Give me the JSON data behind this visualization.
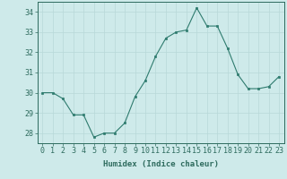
{
  "x": [
    0,
    1,
    2,
    3,
    4,
    5,
    6,
    7,
    8,
    9,
    10,
    11,
    12,
    13,
    14,
    15,
    16,
    17,
    18,
    19,
    20,
    21,
    22,
    23
  ],
  "y": [
    30.0,
    30.0,
    29.7,
    28.9,
    28.9,
    27.8,
    28.0,
    28.0,
    28.5,
    29.8,
    30.6,
    31.8,
    32.7,
    33.0,
    33.1,
    34.2,
    33.3,
    33.3,
    32.2,
    30.9,
    30.2,
    30.2,
    30.3,
    30.8
  ],
  "line_color": "#2e7b6e",
  "marker": "s",
  "marker_size": 2.0,
  "bg_color": "#ceeaea",
  "grid_color": "#b8d8d8",
  "xlabel": "Humidex (Indice chaleur)",
  "xlim": [
    -0.5,
    23.5
  ],
  "ylim": [
    27.5,
    34.5
  ],
  "yticks": [
    28,
    29,
    30,
    31,
    32,
    33,
    34
  ],
  "xtick_labels": [
    "0",
    "1",
    "2",
    "3",
    "4",
    "5",
    "6",
    "7",
    "8",
    "9",
    "10",
    "11",
    "12",
    "13",
    "14",
    "15",
    "16",
    "17",
    "18",
    "19",
    "20",
    "21",
    "22",
    "23"
  ],
  "xlabel_fontsize": 6.5,
  "tick_fontsize": 6.0,
  "axis_color": "#2e6b5e",
  "line_width": 0.8
}
